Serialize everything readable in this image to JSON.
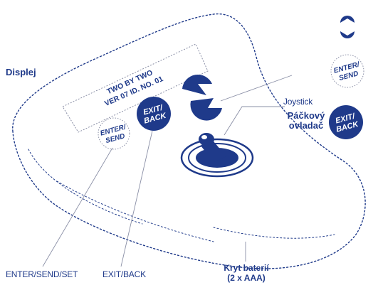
{
  "display": {
    "line1": "TWO BY TWO",
    "line2": "VER 07 ID. NO. 01"
  },
  "buttons": {
    "exit_back_top": "EXIT/",
    "exit_back_bottom": "BACK",
    "enter_send_top": "ENTER/",
    "enter_send_bottom": "SEND"
  },
  "labels": {
    "displej": "Displej",
    "joystick": "Joystick",
    "packovy_line1": "Páčkový",
    "packovy_line2": "ovladač",
    "enter_send_set": "ENTER/SEND/SET",
    "exit_back": "EXIT/BACK",
    "kryt_line1": "Kryt baterií",
    "kryt_line2": "(2 x AAA)"
  },
  "colors": {
    "navy": "#1f3a8a",
    "line": "#8a8fa6"
  },
  "icons": {
    "arrow_pair": "up-down-arrows-icon",
    "joystick": "joystick-icon"
  }
}
